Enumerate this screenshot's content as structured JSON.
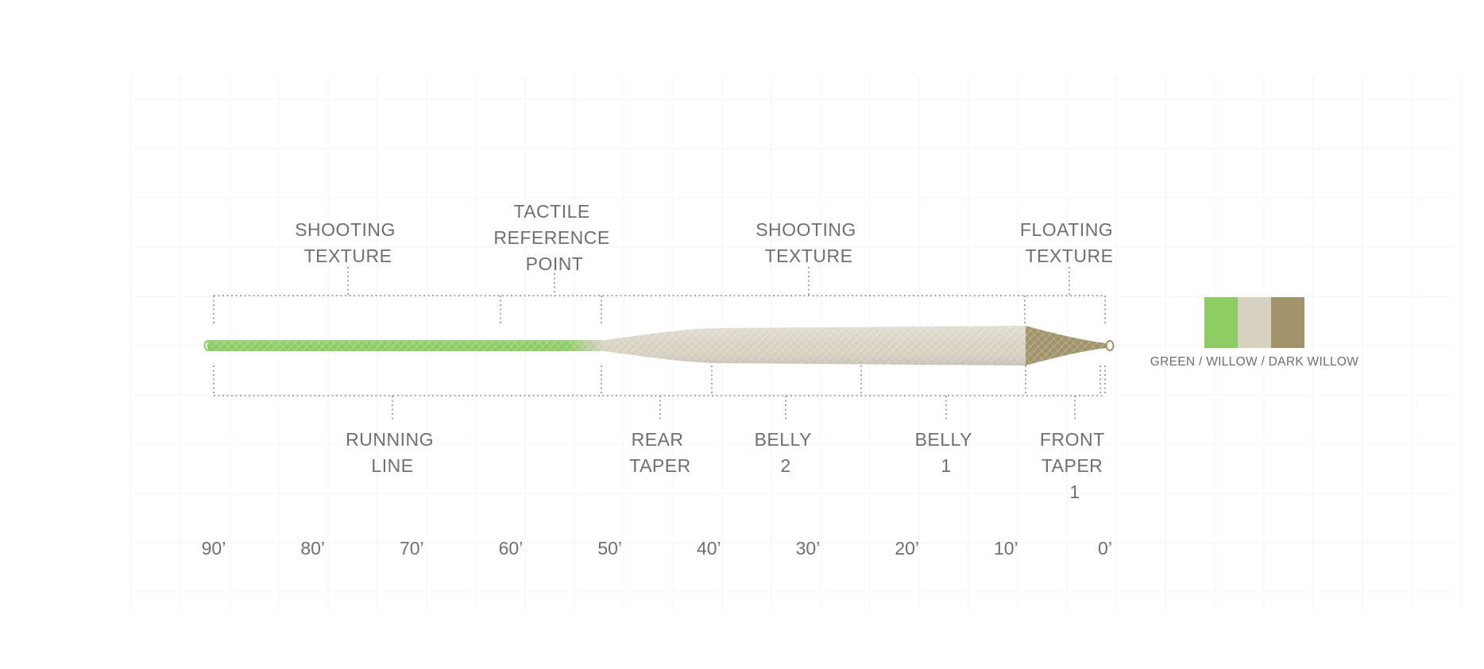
{
  "line": {
    "colors": {
      "running_line": "#8ccc62",
      "body": "#d6d1c1",
      "tip": "#a2946a"
    }
  },
  "top_labels": [
    {
      "lines": [
        "SHOOTING",
        "TEXTURE"
      ]
    },
    {
      "lines": [
        "TACTILE",
        "REFERENCE",
        "POINT"
      ]
    },
    {
      "lines": [
        "SHOOTING",
        "TEXTURE"
      ]
    },
    {
      "lines": [
        "FLOATING",
        "TEXTURE"
      ]
    }
  ],
  "bottom_labels": [
    {
      "lines": [
        "RUNNING",
        "LINE"
      ]
    },
    {
      "lines": [
        "REAR",
        "TAPER"
      ]
    },
    {
      "lines": [
        "BELLY",
        "2"
      ]
    },
    {
      "lines": [
        "BELLY",
        "1"
      ]
    },
    {
      "lines": [
        "FRONT",
        "TAPER",
        "1"
      ]
    }
  ],
  "scale": {
    "ticks": [
      "90’",
      "80’",
      "70’",
      "60’",
      "50’",
      "40’",
      "30’",
      "20’",
      "10’",
      "0’"
    ]
  },
  "legend": {
    "swatches": [
      {
        "name": "green",
        "color": "#8ccc62"
      },
      {
        "name": "willow",
        "color": "#d6d1c1"
      },
      {
        "name": "dark-willow",
        "color": "#a2946a"
      }
    ],
    "caption": "GREEN / WILLOW / DARK WILLOW"
  }
}
